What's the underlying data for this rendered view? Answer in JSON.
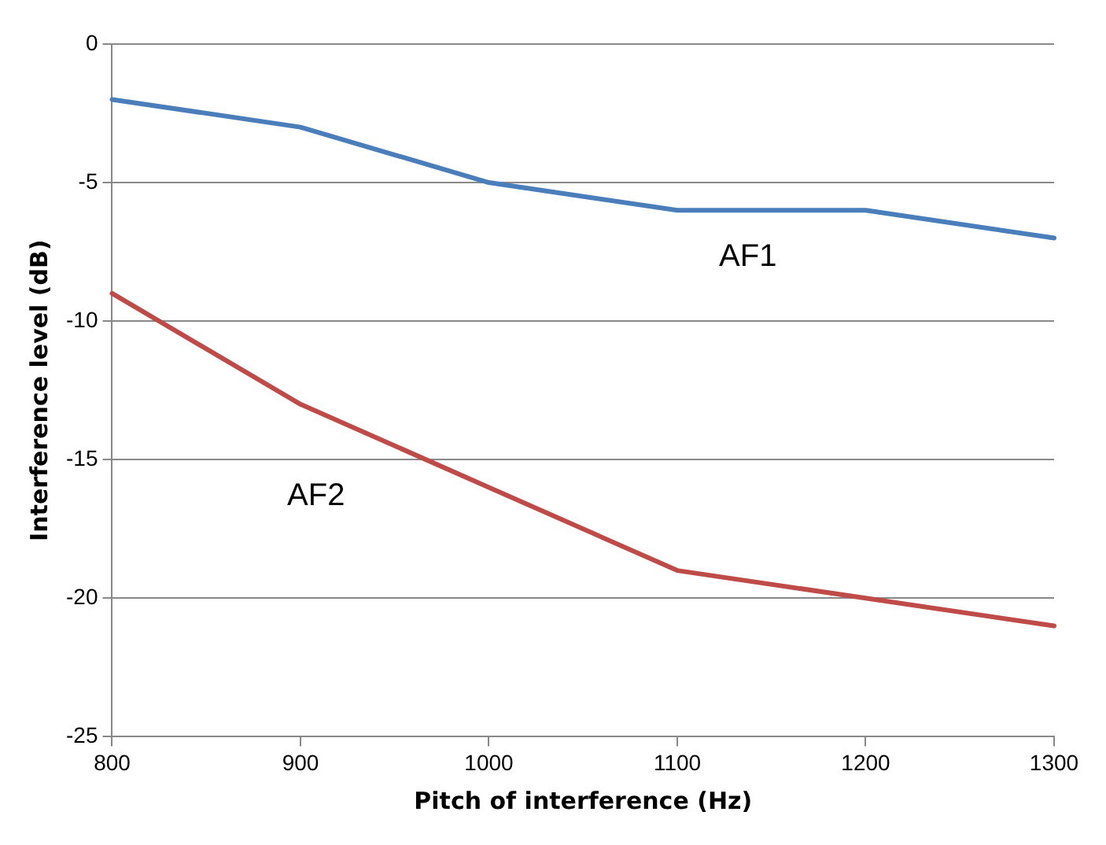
{
  "chart_data": {
    "type": "line",
    "xlabel": "Pitch of interference (Hz)",
    "ylabel": "Interference level (dB)",
    "x": [
      800,
      900,
      1000,
      1100,
      1200,
      1300
    ],
    "series": [
      {
        "name": "AF1",
        "color": "#4a7ebb",
        "values": [
          -2,
          -3,
          -5,
          -6,
          -6,
          -7
        ]
      },
      {
        "name": "AF2",
        "color": "#be4b48",
        "values": [
          -9,
          -13,
          -16,
          -19,
          -20,
          -21
        ]
      }
    ],
    "xlim": [
      800,
      1300
    ],
    "xticks": [
      800,
      900,
      1000,
      1100,
      1200,
      1300
    ],
    "ylim": [
      -25,
      0
    ],
    "yticks": [
      0,
      -5,
      -10,
      -15,
      -20,
      -25
    ],
    "grid": "y",
    "legend": false,
    "marker": "none",
    "line_style": "solid"
  }
}
